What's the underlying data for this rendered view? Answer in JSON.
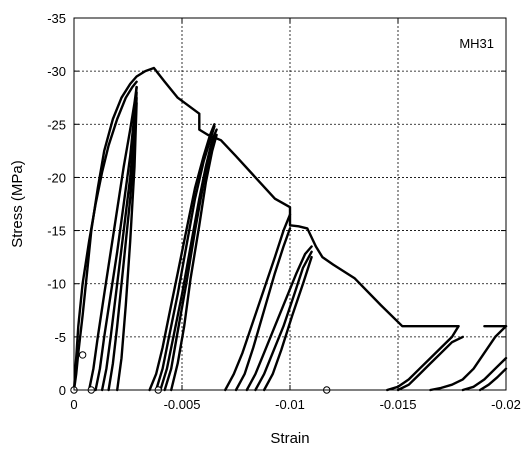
{
  "chart_data": {
    "type": "line",
    "title": "",
    "annotation": "MH31",
    "xlabel": "Strain",
    "ylabel": "Stress (MPa)",
    "xlim": [
      0,
      -0.02
    ],
    "ylim": [
      0,
      -35
    ],
    "x_ticks": [
      0,
      -0.005,
      -0.01,
      -0.015,
      -0.02
    ],
    "x_tick_labels": [
      "0",
      "-0.005",
      "-0.01",
      "-0.015",
      "-0.02"
    ],
    "y_ticks": [
      0,
      -5,
      -10,
      -15,
      -20,
      -25,
      -30,
      -35
    ],
    "y_tick_labels": [
      "0",
      "-5",
      "-10",
      "-15",
      "-20",
      "-25",
      "-30",
      "-35"
    ],
    "grid": true,
    "series": [
      {
        "type": "line",
        "color": "#000000",
        "x": [
          0,
          -0.0001,
          -0.0002,
          -0.0004,
          -0.0006,
          -0.0008,
          -0.0011,
          -0.0014,
          -0.0018,
          -0.0022,
          -0.0026,
          -0.0029,
          -0.0033,
          -0.0037,
          -0.0042,
          -0.0048,
          -0.0058,
          -0.0058,
          -0.0062,
          -0.0068,
          -0.0075,
          -0.0084,
          -0.0093,
          -0.01,
          -0.01,
          -0.0104,
          -0.0108,
          -0.0112,
          -0.0115,
          -0.012,
          -0.013,
          -0.0142,
          -0.0152,
          -0.016,
          -0.017,
          -0.0178
        ],
        "y": [
          0,
          -1.5,
          -3.5,
          -7,
          -11,
          -15,
          -19,
          -22.5,
          -25.5,
          -27.5,
          -28.8,
          -29.5,
          -30,
          -30.3,
          -29,
          -27.5,
          -26,
          -24.5,
          -24,
          -23.5,
          -22,
          -20,
          -18,
          -17.2,
          -15.5,
          -15.4,
          -15.2,
          -13.5,
          -12.5,
          -11.8,
          -10.5,
          -8,
          -6,
          -6,
          -6,
          -6
        ]
      },
      {
        "type": "line",
        "color": "#000000",
        "x": [
          0,
          -0.0001,
          -0.0002,
          -0.0004,
          -0.0007,
          -0.001,
          -0.0013,
          -0.0016,
          -0.002,
          -0.0024,
          -0.0027,
          -0.0029
        ],
        "y": [
          0,
          -3,
          -6,
          -10,
          -14,
          -17.5,
          -20.5,
          -23,
          -25.5,
          -27.5,
          -28.5,
          -29
        ]
      },
      {
        "type": "line",
        "color": "#000000",
        "x": [
          -0.0007,
          -0.0009,
          -0.0011,
          -0.0014,
          -0.0017,
          -0.002,
          -0.0023,
          -0.0026,
          -0.0028,
          -0.0029
        ],
        "y": [
          0,
          -2,
          -5,
          -9,
          -13,
          -17,
          -21,
          -24.5,
          -27,
          -28.5
        ]
      },
      {
        "type": "line",
        "color": "#000000",
        "x": [
          -0.001,
          -0.0012,
          -0.0014,
          -0.0017,
          -0.002,
          -0.0023,
          -0.0026,
          -0.0028,
          -0.0029
        ],
        "y": [
          0,
          -2,
          -5,
          -9,
          -13,
          -17.5,
          -22,
          -26,
          -28.5
        ]
      },
      {
        "type": "line",
        "color": "#000000",
        "x": [
          -0.0013,
          -0.0015,
          -0.0017,
          -0.002,
          -0.0023,
          -0.0026,
          -0.0028,
          -0.0029
        ],
        "y": [
          0,
          -2,
          -5,
          -10,
          -15,
          -20,
          -24.5,
          -28
        ]
      },
      {
        "type": "line",
        "color": "#000000",
        "x": [
          -0.0016,
          -0.0018,
          -0.002,
          -0.0023,
          -0.0026,
          -0.0028,
          -0.0029
        ],
        "y": [
          0,
          -2.5,
          -6,
          -12,
          -18,
          -23,
          -27.5
        ]
      },
      {
        "type": "line",
        "color": "#000000",
        "x": [
          -0.002,
          -0.0022,
          -0.0024,
          -0.0026,
          -0.0028,
          -0.0029
        ],
        "y": [
          0,
          -3,
          -8,
          -14,
          -21,
          -27
        ]
      },
      {
        "type": "line",
        "color": "#000000",
        "x": [
          -0.0035,
          -0.0038,
          -0.0041,
          -0.0044,
          -0.0048,
          -0.0052,
          -0.0056,
          -0.006,
          -0.0063,
          -0.0065
        ],
        "y": [
          0,
          -1.5,
          -4,
          -7,
          -11,
          -15,
          -19,
          -22,
          -24,
          -25
        ]
      },
      {
        "type": "line",
        "color": "#000000",
        "x": [
          -0.0038,
          -0.0041,
          -0.0044,
          -0.0048,
          -0.0052,
          -0.0056,
          -0.006,
          -0.0063,
          -0.0065
        ],
        "y": [
          0,
          -2,
          -5,
          -9,
          -13.5,
          -18,
          -21.5,
          -23.5,
          -24.8
        ]
      },
      {
        "type": "line",
        "color": "#000000",
        "x": [
          -0.004,
          -0.0043,
          -0.0046,
          -0.005,
          -0.0054,
          -0.0058,
          -0.0061,
          -0.0064,
          -0.0066
        ],
        "y": [
          0,
          -2,
          -5,
          -9,
          -13.5,
          -18,
          -21,
          -23.5,
          -24.5
        ]
      },
      {
        "type": "line",
        "color": "#000000",
        "x": [
          -0.0042,
          -0.0045,
          -0.0048,
          -0.0052,
          -0.0056,
          -0.006,
          -0.0063,
          -0.0065
        ],
        "y": [
          0,
          -2,
          -5.5,
          -10,
          -15,
          -19.5,
          -22.5,
          -24
        ]
      },
      {
        "type": "line",
        "color": "#000000",
        "x": [
          -0.0045,
          -0.0048,
          -0.0051,
          -0.0054,
          -0.0058,
          -0.0061,
          -0.0064,
          -0.0066
        ],
        "y": [
          0,
          -2.5,
          -6,
          -10.5,
          -15.5,
          -19.5,
          -22.5,
          -24
        ]
      },
      {
        "type": "line",
        "color": "#000000",
        "x": [
          -0.007,
          -0.0074,
          -0.0078,
          -0.0083,
          -0.0088,
          -0.0093,
          -0.0097,
          -0.01
        ],
        "y": [
          0,
          -1.5,
          -3.5,
          -6.5,
          -9.5,
          -12.5,
          -15,
          -16.5
        ]
      },
      {
        "type": "line",
        "color": "#000000",
        "x": [
          -0.0075,
          -0.0079,
          -0.0083,
          -0.0088,
          -0.0093,
          -0.0097,
          -0.01
        ],
        "y": [
          0,
          -1.5,
          -4,
          -7.5,
          -11,
          -13.5,
          -15.2
        ]
      },
      {
        "type": "line",
        "color": "#000000",
        "x": [
          -0.008,
          -0.0084,
          -0.0088,
          -0.0093,
          -0.0098,
          -0.0103,
          -0.0107,
          -0.011
        ],
        "y": [
          0,
          -1.5,
          -3.5,
          -6,
          -8.5,
          -11,
          -12.8,
          -13.5
        ]
      },
      {
        "type": "line",
        "color": "#000000",
        "x": [
          -0.0084,
          -0.0088,
          -0.0092,
          -0.0097,
          -0.0102,
          -0.0106,
          -0.011
        ],
        "y": [
          0,
          -1.5,
          -3.5,
          -6,
          -9,
          -11.5,
          -13
        ]
      },
      {
        "type": "line",
        "color": "#000000",
        "x": [
          -0.0088,
          -0.0092,
          -0.0096,
          -0.0101,
          -0.0106,
          -0.011
        ],
        "y": [
          0,
          -1.5,
          -3.8,
          -7,
          -10,
          -12.5
        ]
      },
      {
        "type": "line",
        "color": "#000000",
        "x": [
          -0.0145,
          -0.015,
          -0.0155,
          -0.016,
          -0.0165,
          -0.017,
          -0.0175,
          -0.0178
        ],
        "y": [
          0,
          -0.3,
          -1,
          -2,
          -3,
          -4,
          -5,
          -6
        ]
      },
      {
        "type": "line",
        "color": "#000000",
        "x": [
          -0.015,
          -0.0155,
          -0.016,
          -0.0165,
          -0.017,
          -0.0175,
          -0.018
        ],
        "y": [
          0,
          -0.5,
          -1.5,
          -2.5,
          -3.5,
          -4.5,
          -5
        ]
      },
      {
        "type": "line",
        "color": "#000000",
        "x": [
          -0.0165,
          -0.017,
          -0.0175,
          -0.018,
          -0.0185,
          -0.019,
          -0.0195,
          -0.02
        ],
        "y": [
          0,
          -0.2,
          -0.5,
          -1,
          -2,
          -3.5,
          -5,
          -6
        ]
      },
      {
        "type": "line",
        "color": "#000000",
        "x": [
          -0.018,
          -0.0185,
          -0.019,
          -0.0195,
          -0.02
        ],
        "y": [
          0,
          -0.3,
          -1,
          -2,
          -3
        ]
      },
      {
        "type": "line",
        "color": "#000000",
        "x": [
          -0.0188,
          -0.0192,
          -0.0196,
          -0.02
        ],
        "y": [
          0,
          -0.5,
          -1.2,
          -2
        ]
      },
      {
        "type": "line",
        "color": "#000000",
        "x": [
          -0.019,
          -0.02
        ],
        "y": [
          -6,
          -6
        ]
      }
    ],
    "markers": {
      "type": "scatter",
      "shape": "open-circle",
      "x": [
        0,
        -0.0004,
        -0.0008,
        -0.0039,
        -0.0117
      ],
      "y": [
        0,
        -3.3,
        0,
        0,
        0
      ]
    }
  }
}
